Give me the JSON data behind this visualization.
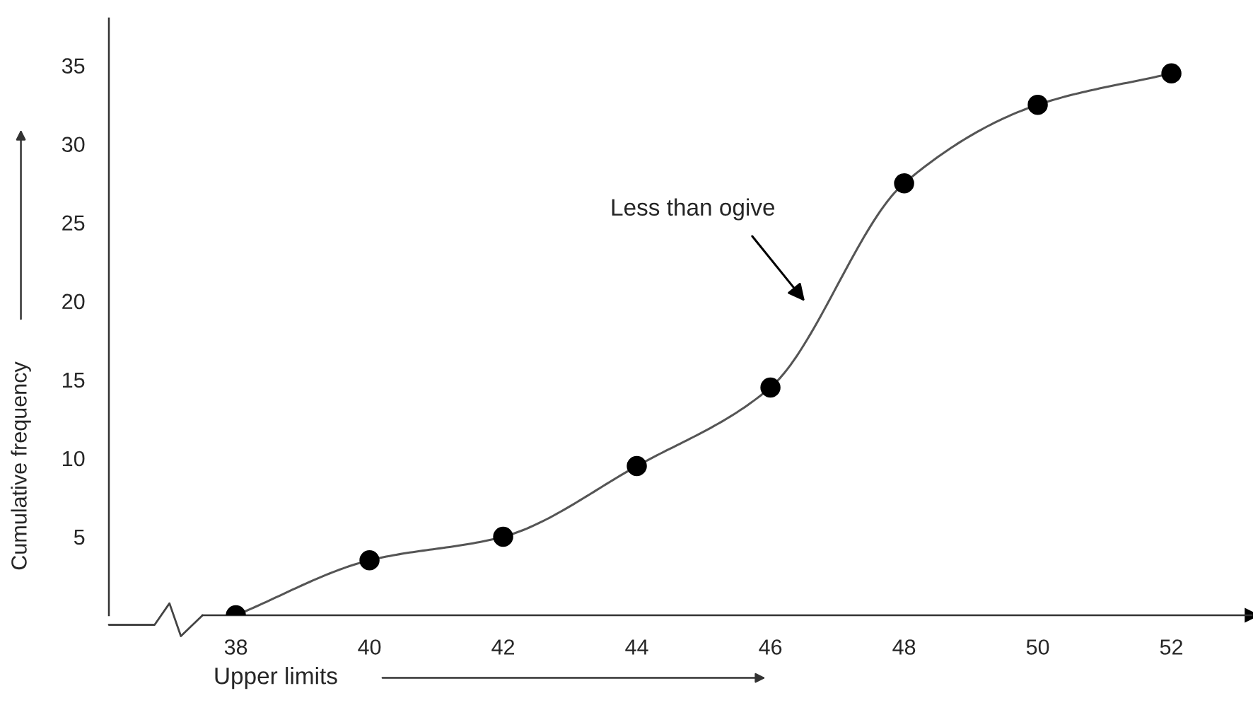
{
  "chart_data": {
    "type": "line",
    "xlabel": "Upper limits",
    "ylabel": "Cumulative frequency",
    "x": [
      38,
      40,
      42,
      44,
      46,
      48,
      50,
      52
    ],
    "series": [
      {
        "color": "#000000",
        "values": [
          0,
          3.5,
          5,
          9.5,
          14.5,
          27.5,
          32.5,
          34.5
        ]
      }
    ],
    "marker": "circle",
    "line_style": "solid",
    "grid": false,
    "xlim": [
      36.1,
      53.2
    ],
    "ylim": [
      0,
      38
    ],
    "xticks": [
      38,
      40,
      42,
      44,
      46,
      48,
      50,
      52
    ],
    "yticks": [
      5,
      10,
      15,
      20,
      25,
      30,
      35
    ],
    "annotations": [
      "Less than ogive"
    ]
  }
}
